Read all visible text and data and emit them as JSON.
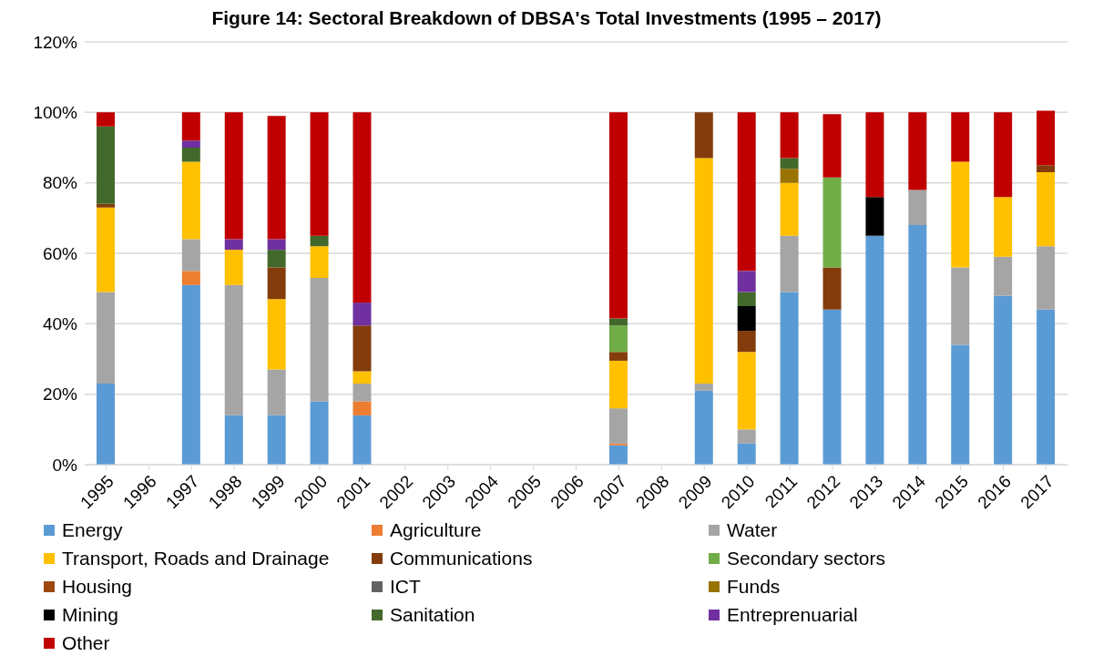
{
  "chart_data": {
    "type": "bar",
    "stacked": true,
    "title": "Figure 14: Sectoral Breakdown of DBSA's Total Investments (1995 – 2017)",
    "categories": [
      "1995",
      "1996",
      "1997",
      "1998",
      "1999",
      "2000",
      "2001",
      "2002",
      "2003",
      "2004",
      "2005",
      "2006",
      "2007",
      "2008",
      "2009",
      "2010",
      "2011",
      "2012",
      "2013",
      "2014",
      "2015",
      "2016",
      "2017"
    ],
    "ylim": [
      0,
      120
    ],
    "yticks": [
      {
        "value": 0,
        "label": "0%"
      },
      {
        "value": 20,
        "label": "20%"
      },
      {
        "value": 40,
        "label": "40%"
      },
      {
        "value": 60,
        "label": "60%"
      },
      {
        "value": 80,
        "label": "80%"
      },
      {
        "value": 100,
        "label": "100%"
      },
      {
        "value": 120,
        "label": "120%"
      }
    ],
    "grid": "y",
    "legend": "bottom",
    "series": [
      {
        "name": "Energy",
        "color": "#5b9bd5",
        "values": [
          23,
          null,
          51,
          14,
          14,
          18,
          14,
          null,
          null,
          null,
          null,
          null,
          5.5,
          null,
          21,
          6,
          49,
          44,
          65,
          68,
          34,
          48,
          44
        ]
      },
      {
        "name": "Agriculture",
        "color": "#ed7d31",
        "values": [
          null,
          null,
          4,
          null,
          null,
          null,
          4,
          null,
          null,
          null,
          null,
          null,
          0.5,
          null,
          null,
          null,
          null,
          null,
          null,
          null,
          null,
          null,
          null
        ]
      },
      {
        "name": "Water",
        "color": "#a5a5a5",
        "values": [
          26,
          null,
          9,
          37,
          13,
          35,
          5,
          null,
          null,
          null,
          null,
          null,
          10,
          null,
          2,
          4,
          16,
          null,
          null,
          10,
          22,
          11,
          18
        ]
      },
      {
        "name": "Transport, Roads and Drainage",
        "color": "#ffc000",
        "values": [
          24,
          null,
          22,
          10,
          20,
          9,
          3.5,
          null,
          null,
          null,
          null,
          null,
          13.5,
          null,
          64,
          22,
          15,
          null,
          null,
          null,
          30,
          17,
          21
        ]
      },
      {
        "name": "Communications",
        "color": "#843c0c",
        "values": [
          1,
          null,
          null,
          null,
          9,
          null,
          13,
          null,
          null,
          null,
          null,
          null,
          2.5,
          null,
          13,
          6,
          null,
          12,
          null,
          null,
          null,
          null,
          2
        ]
      },
      {
        "name": "Secondary sectors",
        "color": "#70ad47",
        "values": [
          null,
          null,
          null,
          null,
          null,
          null,
          null,
          null,
          null,
          null,
          null,
          null,
          7.5,
          null,
          null,
          null,
          null,
          25.5,
          null,
          null,
          null,
          null,
          null
        ]
      },
      {
        "name": "Housing",
        "color": "#9e480e",
        "values": [
          null,
          null,
          null,
          null,
          null,
          null,
          null,
          null,
          null,
          null,
          null,
          null,
          null,
          null,
          null,
          null,
          null,
          null,
          null,
          null,
          null,
          null,
          null
        ]
      },
      {
        "name": "ICT",
        "color": "#636363",
        "values": [
          null,
          null,
          null,
          null,
          null,
          null,
          null,
          null,
          null,
          null,
          null,
          null,
          null,
          null,
          null,
          null,
          null,
          null,
          null,
          null,
          null,
          null,
          null
        ]
      },
      {
        "name": "Funds",
        "color": "#997300",
        "values": [
          null,
          null,
          null,
          null,
          null,
          null,
          null,
          null,
          null,
          null,
          null,
          null,
          null,
          null,
          null,
          null,
          4,
          null,
          null,
          null,
          null,
          null,
          null
        ]
      },
      {
        "name": "Mining",
        "color": "#000000",
        "values": [
          null,
          null,
          null,
          null,
          null,
          null,
          null,
          null,
          null,
          null,
          null,
          null,
          null,
          null,
          null,
          7,
          null,
          null,
          11,
          null,
          null,
          null,
          null
        ]
      },
      {
        "name": "Sanitation",
        "color": "#43682b",
        "values": [
          22,
          null,
          4,
          null,
          5,
          3,
          null,
          null,
          null,
          null,
          null,
          null,
          2,
          null,
          null,
          4,
          3,
          null,
          null,
          null,
          null,
          null,
          null
        ]
      },
      {
        "name": "Entreprenuarial",
        "color": "#7030a0",
        "values": [
          null,
          null,
          2,
          3,
          3,
          null,
          6.5,
          null,
          null,
          null,
          null,
          null,
          null,
          null,
          null,
          6,
          null,
          null,
          null,
          null,
          null,
          null,
          null
        ]
      },
      {
        "name": "Other",
        "color": "#c00000",
        "values": [
          4,
          null,
          8,
          36,
          35,
          35,
          54,
          null,
          null,
          null,
          null,
          null,
          58.5,
          null,
          null,
          45,
          13,
          18,
          24,
          22,
          14,
          24,
          15.5
        ]
      }
    ]
  }
}
